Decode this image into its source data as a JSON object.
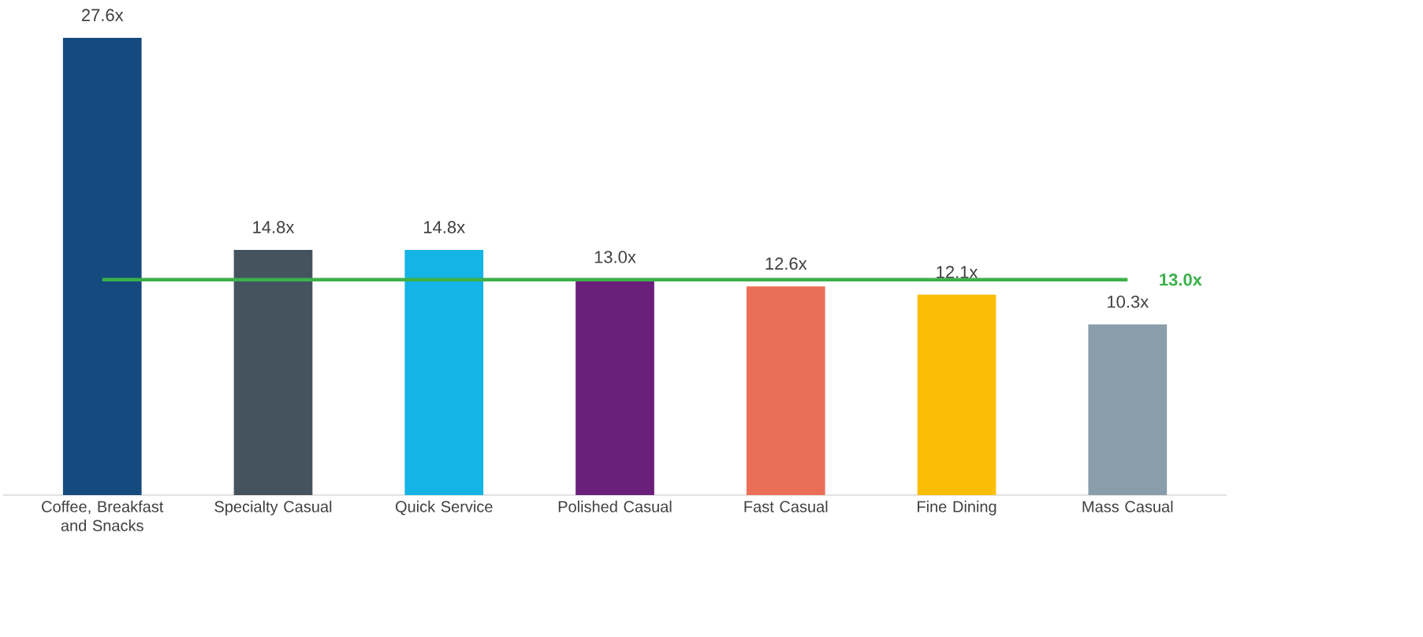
{
  "chart_data": {
    "type": "bar",
    "categories": [
      "Coffee, Breakfast and Snacks",
      "Specialty Casual",
      "Quick Service",
      "Polished Casual",
      "Fast Casual",
      "Fine Dining",
      "Mass Casual"
    ],
    "values": [
      27.6,
      14.8,
      14.8,
      13.0,
      12.6,
      12.1,
      10.3
    ],
    "value_labels": [
      "27.6x",
      "14.8x",
      "14.8x",
      "13.0x",
      "12.6x",
      "12.1x",
      "10.3x"
    ],
    "colors": [
      "#154a7e",
      "#44535e",
      "#14b4e6",
      "#6a1f7a",
      "#eb6f58",
      "#fbbe07",
      "#8a9dab"
    ],
    "ref_lines": [
      {
        "axis": "y",
        "value": 13.0,
        "label": "13.0x",
        "color": "#3cb04a",
        "line_style": "solid"
      }
    ]
  }
}
